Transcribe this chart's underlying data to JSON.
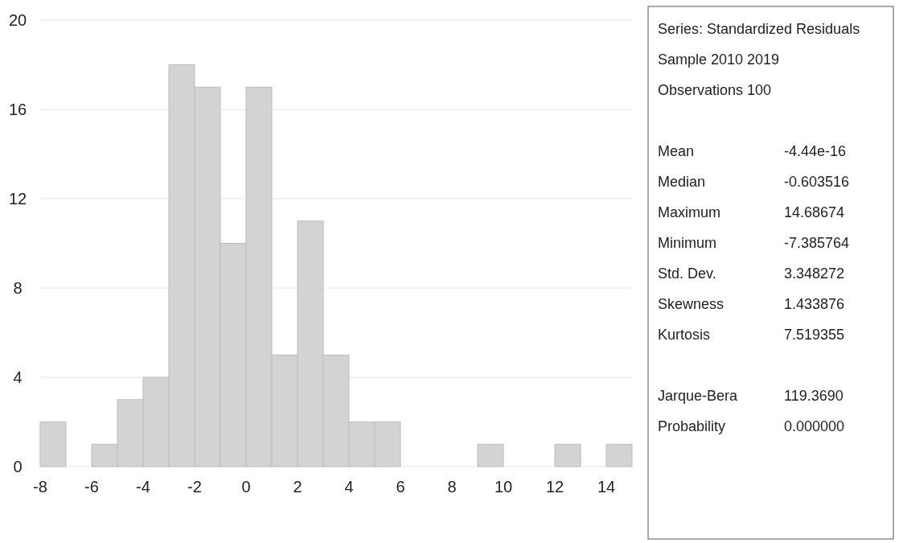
{
  "chart_data": [
    {
      "type": "histogram",
      "bins": [
        -8,
        -7,
        -6,
        -5,
        -4,
        -3,
        -2,
        -1,
        0,
        1,
        2,
        3,
        4,
        5,
        6,
        7,
        8,
        9,
        10,
        11,
        12,
        13,
        14,
        15
      ],
      "values": [
        2,
        0,
        1,
        3,
        4,
        18,
        17,
        10,
        17,
        5,
        11,
        5,
        2,
        2,
        0,
        0,
        0,
        1,
        0,
        0,
        1,
        0,
        1
      ],
      "color": "#d3d3d3",
      "xlim": [
        -8,
        15
      ],
      "xticks": [
        -8,
        -6,
        -4,
        -2,
        0,
        2,
        4,
        6,
        8,
        10,
        12,
        14
      ],
      "ylim": [
        0,
        20
      ],
      "yticks": [
        0,
        4,
        8,
        12,
        16,
        20
      ],
      "grid": "y"
    },
    {
      "type": "other",
      "title": "Series: Standardized Residuals",
      "annotations": [
        "Sample 2010 2019",
        "Observations 100"
      ],
      "categories": [
        "Mean",
        "Median",
        "Maximum",
        "Minimum",
        "Std. Dev.",
        "Skewness",
        "Kurtosis",
        null,
        "Jarque-Bera",
        "Probability"
      ],
      "value_labels": [
        "-4.44e-16",
        "-0.603516",
        "14.68674",
        "-7.385764",
        "3.348272",
        "1.433876",
        "7.519355",
        null,
        "119.3690",
        "0.000000"
      ]
    }
  ]
}
